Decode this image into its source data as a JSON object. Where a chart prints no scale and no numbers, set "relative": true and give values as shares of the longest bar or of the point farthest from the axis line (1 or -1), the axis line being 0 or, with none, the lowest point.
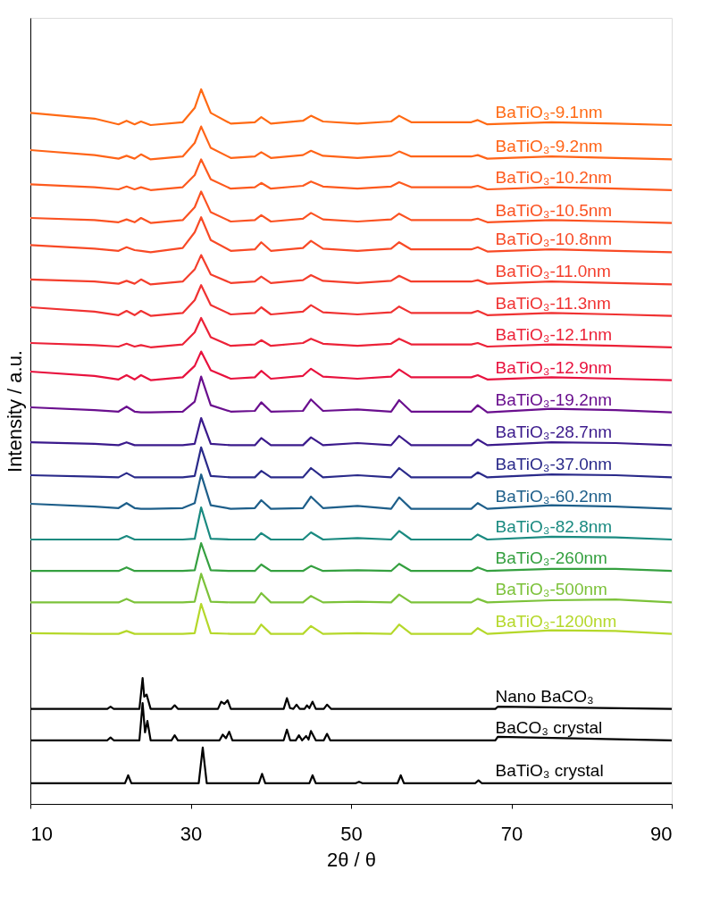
{
  "chart_data": {
    "type": "line",
    "relative": true,
    "xlabel": "2θ / θ",
    "ylabel": "Intensity / a.u.",
    "xlim": [
      10,
      90
    ],
    "xticks": [
      10,
      30,
      50,
      70,
      90
    ],
    "tick_labels": "x",
    "grid": false,
    "legend": false,
    "x": [
      10,
      18,
      21,
      22,
      23,
      23.8,
      25,
      29,
      30.5,
      31.3,
      32.5,
      35,
      38,
      38.8,
      40,
      44,
      45,
      46.5,
      50.8,
      55,
      56,
      57.5,
      65,
      65.8,
      67,
      75,
      83,
      90
    ],
    "series": [
      {
        "name": "BaTiO₃-9.1nm",
        "color": "#ff6a14",
        "values": [
          0.967,
          0.959,
          0.951,
          0.956,
          0.951,
          0.955,
          0.95,
          0.954,
          0.974,
          1.0,
          0.967,
          0.952,
          0.954,
          0.961,
          0.952,
          0.956,
          0.963,
          0.955,
          0.952,
          0.955,
          0.963,
          0.954,
          0.954,
          0.957,
          0.951,
          0.954,
          0.952,
          0.95
        ]
      },
      {
        "name": "BaTiO₃-9.2nm",
        "color": "#ff6418",
        "values": [
          0.915,
          0.908,
          0.903,
          0.907,
          0.903,
          0.909,
          0.902,
          0.906,
          0.925,
          0.948,
          0.918,
          0.904,
          0.906,
          0.912,
          0.904,
          0.908,
          0.914,
          0.907,
          0.904,
          0.907,
          0.913,
          0.906,
          0.906,
          0.908,
          0.903,
          0.906,
          0.904,
          0.902
        ]
      },
      {
        "name": "BaTiO₃-10.2nm",
        "color": "#fd5a1e",
        "values": [
          0.867,
          0.863,
          0.86,
          0.864,
          0.86,
          0.863,
          0.859,
          0.863,
          0.88,
          0.902,
          0.874,
          0.861,
          0.863,
          0.869,
          0.861,
          0.865,
          0.871,
          0.864,
          0.861,
          0.864,
          0.87,
          0.863,
          0.863,
          0.865,
          0.86,
          0.863,
          0.861,
          0.859
        ]
      },
      {
        "name": "BaTiO₃-10.5nm",
        "color": "#fb5222",
        "values": [
          0.82,
          0.817,
          0.814,
          0.818,
          0.814,
          0.82,
          0.813,
          0.817,
          0.835,
          0.857,
          0.828,
          0.815,
          0.817,
          0.824,
          0.815,
          0.819,
          0.827,
          0.818,
          0.815,
          0.818,
          0.826,
          0.817,
          0.817,
          0.819,
          0.814,
          0.817,
          0.815,
          0.813
        ]
      },
      {
        "name": "BaTiO₃-10.8nm",
        "color": "#f84a26",
        "values": [
          0.782,
          0.777,
          0.774,
          0.779,
          0.775,
          0.774,
          0.772,
          0.778,
          0.8,
          0.821,
          0.789,
          0.774,
          0.776,
          0.786,
          0.774,
          0.778,
          0.788,
          0.777,
          0.774,
          0.777,
          0.786,
          0.776,
          0.776,
          0.779,
          0.773,
          0.776,
          0.774,
          0.772
        ]
      },
      {
        "name": "BaTiO₃-11.0nm",
        "color": "#f43e2c",
        "values": [
          0.734,
          0.731,
          0.728,
          0.732,
          0.728,
          0.734,
          0.727,
          0.731,
          0.748,
          0.768,
          0.741,
          0.729,
          0.731,
          0.738,
          0.729,
          0.733,
          0.74,
          0.732,
          0.729,
          0.732,
          0.739,
          0.731,
          0.731,
          0.733,
          0.728,
          0.731,
          0.729,
          0.727
        ]
      },
      {
        "name": "BaTiO₃-11.3nm",
        "color": "#f03232",
        "values": [
          0.695,
          0.689,
          0.684,
          0.69,
          0.684,
          0.69,
          0.683,
          0.687,
          0.705,
          0.726,
          0.698,
          0.685,
          0.687,
          0.695,
          0.685,
          0.689,
          0.698,
          0.688,
          0.685,
          0.688,
          0.696,
          0.687,
          0.687,
          0.69,
          0.684,
          0.687,
          0.685,
          0.683
        ]
      },
      {
        "name": "BaTiO₃-12.1nm",
        "color": "#ec2238",
        "values": [
          0.645,
          0.642,
          0.64,
          0.644,
          0.64,
          0.642,
          0.639,
          0.643,
          0.66,
          0.68,
          0.653,
          0.641,
          0.643,
          0.649,
          0.641,
          0.645,
          0.651,
          0.644,
          0.641,
          0.644,
          0.651,
          0.643,
          0.643,
          0.645,
          0.64,
          0.643,
          0.641,
          0.639
        ]
      },
      {
        "name": "BaTiO₃-12.9nm",
        "color": "#e8123e",
        "values": [
          0.605,
          0.599,
          0.594,
          0.6,
          0.594,
          0.6,
          0.593,
          0.597,
          0.613,
          0.633,
          0.607,
          0.595,
          0.597,
          0.606,
          0.595,
          0.599,
          0.609,
          0.598,
          0.595,
          0.598,
          0.608,
          0.597,
          0.597,
          0.6,
          0.594,
          0.597,
          0.595,
          0.593
        ]
      },
      {
        "name": "BaTiO₃-19.2nm",
        "color": "#6a0f8e",
        "values": [
          0.555,
          0.551,
          0.549,
          0.556,
          0.549,
          0.548,
          0.548,
          0.549,
          0.563,
          0.598,
          0.558,
          0.549,
          0.55,
          0.562,
          0.549,
          0.55,
          0.566,
          0.55,
          0.552,
          0.549,
          0.565,
          0.549,
          0.549,
          0.558,
          0.548,
          0.553,
          0.551,
          0.548
        ]
      },
      {
        "name": "BaTiO₃-28.7nm",
        "color": "#3b1a8c",
        "values": [
          0.506,
          0.504,
          0.502,
          0.506,
          0.502,
          0.502,
          0.502,
          0.502,
          0.504,
          0.54,
          0.504,
          0.502,
          0.502,
          0.512,
          0.502,
          0.502,
          0.513,
          0.502,
          0.505,
          0.502,
          0.515,
          0.502,
          0.502,
          0.51,
          0.502,
          0.506,
          0.505,
          0.502
        ]
      },
      {
        "name": "BaTiO₃-37.0nm",
        "color": "#2a2a8a",
        "values": [
          0.46,
          0.458,
          0.457,
          0.463,
          0.457,
          0.457,
          0.457,
          0.457,
          0.459,
          0.499,
          0.459,
          0.457,
          0.457,
          0.466,
          0.457,
          0.457,
          0.47,
          0.457,
          0.46,
          0.457,
          0.47,
          0.457,
          0.457,
          0.464,
          0.457,
          0.461,
          0.46,
          0.457
        ]
      },
      {
        "name": "BaTiO₃-60.2nm",
        "color": "#1e5f8a",
        "values": [
          0.42,
          0.416,
          0.414,
          0.421,
          0.414,
          0.413,
          0.413,
          0.414,
          0.421,
          0.461,
          0.418,
          0.413,
          0.414,
          0.425,
          0.413,
          0.414,
          0.43,
          0.414,
          0.417,
          0.413,
          0.429,
          0.413,
          0.413,
          0.421,
          0.413,
          0.418,
          0.416,
          0.413
        ]
      },
      {
        "name": "BaTiO₃-82.8nm",
        "color": "#1a8a80",
        "values": [
          0.37,
          0.37,
          0.37,
          0.375,
          0.37,
          0.37,
          0.37,
          0.37,
          0.371,
          0.415,
          0.371,
          0.37,
          0.37,
          0.379,
          0.37,
          0.37,
          0.38,
          0.37,
          0.372,
          0.37,
          0.382,
          0.37,
          0.37,
          0.377,
          0.37,
          0.374,
          0.373,
          0.37
        ]
      },
      {
        "name": "BaTiO₃-260nm",
        "color": "#35a040",
        "values": [
          0.326,
          0.326,
          0.326,
          0.331,
          0.326,
          0.326,
          0.326,
          0.326,
          0.327,
          0.365,
          0.327,
          0.326,
          0.326,
          0.335,
          0.326,
          0.326,
          0.333,
          0.326,
          0.327,
          0.326,
          0.336,
          0.326,
          0.326,
          0.331,
          0.326,
          0.329,
          0.329,
          0.326
        ]
      },
      {
        "name": "BaTiO₃-500nm",
        "color": "#7cc23a",
        "values": [
          0.282,
          0.282,
          0.282,
          0.287,
          0.282,
          0.282,
          0.282,
          0.282,
          0.283,
          0.322,
          0.283,
          0.282,
          0.282,
          0.295,
          0.282,
          0.282,
          0.291,
          0.282,
          0.283,
          0.282,
          0.293,
          0.282,
          0.282,
          0.287,
          0.282,
          0.285,
          0.286,
          0.282
        ]
      },
      {
        "name": "BaTiO₃-1200nm",
        "color": "#b5d82a",
        "values": [
          0.239,
          0.238,
          0.238,
          0.242,
          0.238,
          0.238,
          0.238,
          0.238,
          0.239,
          0.28,
          0.239,
          0.238,
          0.238,
          0.251,
          0.238,
          0.238,
          0.249,
          0.238,
          0.239,
          0.238,
          0.251,
          0.238,
          0.238,
          0.246,
          0.238,
          0.243,
          0.242,
          0.238
        ]
      },
      {
        "name": "Nano BaCO₃",
        "color": "#000000",
        "x": [
          10,
          19.6,
          20,
          20.4,
          23.6,
          24,
          24.2,
          24.5,
          25,
          27.6,
          28,
          28.4,
          33.4,
          33.8,
          34.2,
          34.6,
          35,
          41.6,
          42,
          42.4,
          42.8,
          43.2,
          43.6,
          44.2,
          44.5,
          44.8,
          45.2,
          45.6,
          46.6,
          47,
          47.5,
          68,
          68.3,
          90
        ],
        "values": [
          0.133,
          0.133,
          0.136,
          0.133,
          0.133,
          0.176,
          0.15,
          0.153,
          0.133,
          0.133,
          0.138,
          0.133,
          0.133,
          0.143,
          0.14,
          0.145,
          0.133,
          0.133,
          0.148,
          0.134,
          0.133,
          0.139,
          0.133,
          0.133,
          0.138,
          0.134,
          0.143,
          0.133,
          0.133,
          0.139,
          0.133,
          0.133,
          0.136,
          0.133
        ]
      },
      {
        "name": "BaCO₃ crystal",
        "color": "#000000",
        "x": [
          10,
          19.6,
          20,
          20.4,
          23.6,
          24,
          24.3,
          24.6,
          25,
          27.6,
          28,
          28.4,
          33.6,
          34,
          34.4,
          34.8,
          35.2,
          41.6,
          42,
          42.4,
          43.1,
          43.5,
          43.9,
          44.4,
          44.7,
          45,
          45.6,
          46.6,
          47,
          47.4,
          68,
          68.3,
          90
        ],
        "values": [
          0.089,
          0.089,
          0.093,
          0.089,
          0.089,
          0.141,
          0.1,
          0.116,
          0.089,
          0.089,
          0.096,
          0.089,
          0.089,
          0.097,
          0.092,
          0.101,
          0.089,
          0.089,
          0.104,
          0.089,
          0.089,
          0.096,
          0.089,
          0.095,
          0.09,
          0.102,
          0.089,
          0.089,
          0.098,
          0.089,
          0.089,
          0.094,
          0.089
        ]
      },
      {
        "name": "BaTiO₃ crystal",
        "color": "#000000",
        "x": [
          10,
          21.8,
          22.2,
          22.6,
          31,
          31.5,
          32,
          38.5,
          38.9,
          39.3,
          44.8,
          45.2,
          45.6,
          50.6,
          51,
          51.4,
          55.8,
          56.2,
          56.6,
          65.5,
          65.9,
          66.3,
          90
        ],
        "values": [
          0.029,
          0.029,
          0.04,
          0.029,
          0.029,
          0.079,
          0.029,
          0.029,
          0.042,
          0.029,
          0.029,
          0.04,
          0.029,
          0.029,
          0.031,
          0.029,
          0.029,
          0.04,
          0.029,
          0.029,
          0.033,
          0.029,
          0.029
        ]
      }
    ]
  }
}
